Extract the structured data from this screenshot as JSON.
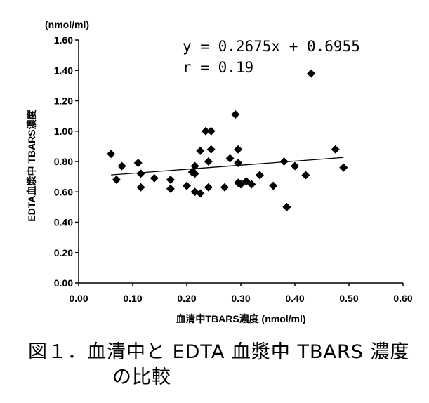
{
  "chart_data": {
    "type": "scatter",
    "xlabel": "血清中TBARS濃度 (nmol/ml)",
    "ylabel": "EDTA血漿中 TBARS濃度",
    "yunit": "(nmol/ml)",
    "xlim": [
      0,
      0.6
    ],
    "ylim": [
      0,
      1.6
    ],
    "x_ticks": [
      "0.00",
      "0.10",
      "0.20",
      "0.30",
      "0.40",
      "0.50",
      "0.60"
    ],
    "y_ticks": [
      "0.00",
      "0.20",
      "0.40",
      "0.60",
      "0.80",
      "1.00",
      "1.20",
      "1.40",
      "1.60"
    ],
    "grid": false,
    "equation": "y = 0.2675x + 0.6955",
    "r_text": "r = 0.19",
    "trendline": {
      "slope": 0.2675,
      "intercept": 0.6955,
      "x_range": [
        0.06,
        0.49
      ]
    },
    "points": [
      {
        "x": 0.06,
        "y": 0.85
      },
      {
        "x": 0.07,
        "y": 0.68
      },
      {
        "x": 0.08,
        "y": 0.77
      },
      {
        "x": 0.11,
        "y": 0.79
      },
      {
        "x": 0.115,
        "y": 0.72
      },
      {
        "x": 0.115,
        "y": 0.63
      },
      {
        "x": 0.14,
        "y": 0.69
      },
      {
        "x": 0.17,
        "y": 0.68
      },
      {
        "x": 0.17,
        "y": 0.62
      },
      {
        "x": 0.2,
        "y": 0.64
      },
      {
        "x": 0.21,
        "y": 0.73
      },
      {
        "x": 0.215,
        "y": 0.77
      },
      {
        "x": 0.215,
        "y": 0.72
      },
      {
        "x": 0.215,
        "y": 0.6
      },
      {
        "x": 0.225,
        "y": 0.87
      },
      {
        "x": 0.225,
        "y": 0.59
      },
      {
        "x": 0.235,
        "y": 1.0
      },
      {
        "x": 0.24,
        "y": 0.8
      },
      {
        "x": 0.24,
        "y": 0.63
      },
      {
        "x": 0.245,
        "y": 1.0
      },
      {
        "x": 0.245,
        "y": 0.88
      },
      {
        "x": 0.27,
        "y": 0.63
      },
      {
        "x": 0.28,
        "y": 0.82
      },
      {
        "x": 0.29,
        "y": 1.11
      },
      {
        "x": 0.295,
        "y": 0.88
      },
      {
        "x": 0.295,
        "y": 0.79
      },
      {
        "x": 0.295,
        "y": 0.66
      },
      {
        "x": 0.3,
        "y": 0.65
      },
      {
        "x": 0.31,
        "y": 0.67
      },
      {
        "x": 0.32,
        "y": 0.65
      },
      {
        "x": 0.335,
        "y": 0.71
      },
      {
        "x": 0.36,
        "y": 0.64
      },
      {
        "x": 0.38,
        "y": 0.8
      },
      {
        "x": 0.385,
        "y": 0.5
      },
      {
        "x": 0.4,
        "y": 0.77
      },
      {
        "x": 0.42,
        "y": 0.71
      },
      {
        "x": 0.43,
        "y": 1.38
      },
      {
        "x": 0.475,
        "y": 0.88
      },
      {
        "x": 0.49,
        "y": 0.76
      }
    ]
  },
  "caption": {
    "line1": "図１．血清中と EDTA 血漿中 TBARS 濃度",
    "line2": "の比較"
  }
}
